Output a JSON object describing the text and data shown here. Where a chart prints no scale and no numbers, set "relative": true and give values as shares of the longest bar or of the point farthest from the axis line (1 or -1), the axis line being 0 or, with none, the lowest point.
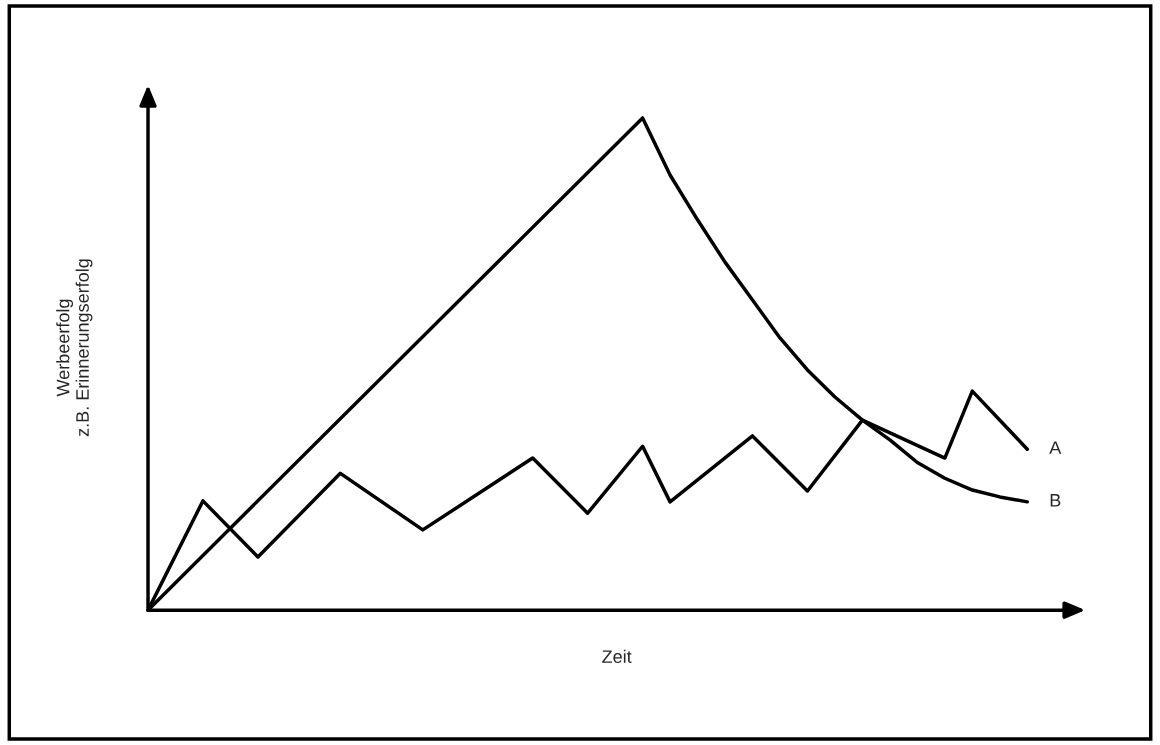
{
  "chart_data": {
    "type": "line",
    "relative": true,
    "xlabel": "Zeit",
    "ylabel": "Werbeerfolg\nz.B. Erinnerungserfolg",
    "legend": false,
    "marker": "none",
    "line_style": "solid",
    "categories": [
      null,
      null,
      null,
      null,
      null,
      null,
      null,
      null,
      null,
      null,
      null,
      null,
      null,
      null,
      null,
      null,
      null,
      null,
      null,
      null,
      null,
      null,
      null,
      null,
      null,
      null,
      null,
      null,
      null,
      null,
      null,
      null,
      null
    ],
    "series": [
      {
        "name": "A",
        "color": "#000000",
        "values": [
          0,
          null,
          0.222,
          null,
          0.108,
          null,
          null,
          0.278,
          null,
          null,
          0.163,
          null,
          null,
          null,
          0.309,
          null,
          0.197,
          null,
          0.333,
          0.22,
          null,
          null,
          0.354,
          null,
          0.242,
          null,
          0.386,
          null,
          null,
          0.309,
          0.445,
          null,
          0.327
        ]
      },
      {
        "name": "B",
        "color": "#000000",
        "values": [
          0,
          null,
          null,
          null,
          null,
          null,
          null,
          null,
          null,
          null,
          null,
          null,
          null,
          null,
          null,
          null,
          null,
          null,
          1,
          0.884,
          0.793,
          0.707,
          0.63,
          0.553,
          0.488,
          0.433,
          0.386,
          0.346,
          0.3,
          0.268,
          0.244,
          0.23,
          0.22
        ]
      }
    ]
  }
}
